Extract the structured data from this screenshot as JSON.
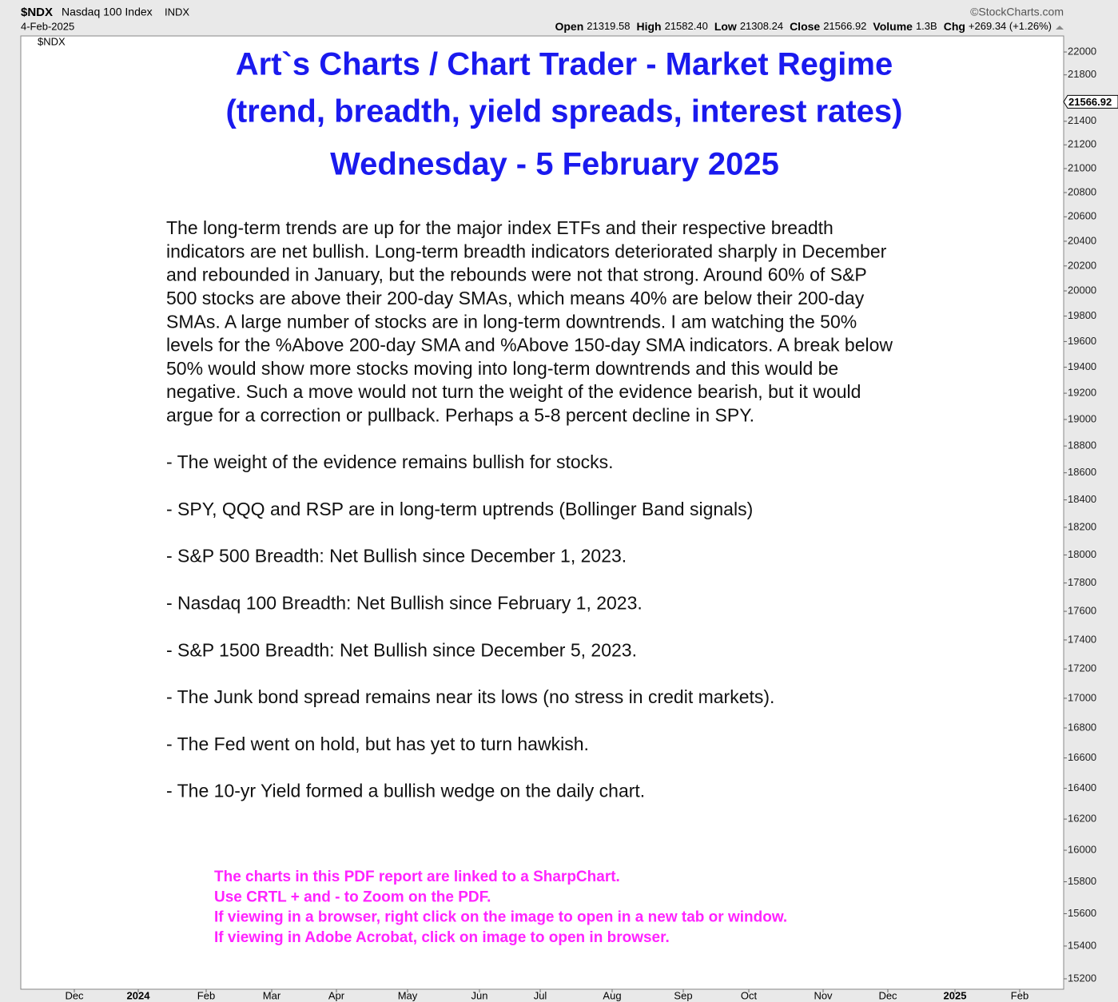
{
  "chart_data": {
    "type": "line",
    "symbol": "$NDX",
    "name": "Nasdaq 100 Index",
    "exchange": "INDX",
    "date": "4-Feb-2025",
    "source": "©StockCharts.com",
    "quote": [
      {
        "label": "Open",
        "value": "21319.58"
      },
      {
        "label": "High",
        "value": "21582.40"
      },
      {
        "label": "Low",
        "value": "21308.24"
      },
      {
        "label": "Close",
        "value": "21566.92"
      },
      {
        "label": "Volume",
        "value": "1.3B"
      },
      {
        "label": "Chg",
        "value": "+269.34 (+1.26%)"
      }
    ],
    "plot_label": "$NDX",
    "log_scale": true,
    "ylim": [
      15137,
      22141
    ],
    "yticks": [
      15200,
      15400,
      15600,
      15800,
      16000,
      16200,
      16400,
      16600,
      16800,
      17000,
      17200,
      17400,
      17600,
      17800,
      18000,
      18200,
      18400,
      18600,
      18800,
      19000,
      19200,
      19400,
      19600,
      19800,
      20000,
      20200,
      20400,
      20600,
      20800,
      21000,
      21200,
      21400,
      21800,
      22000
    ],
    "last_price": 21566.92,
    "categories": [
      "Dec",
      "2024",
      "Feb",
      "Mar",
      "Apr",
      "May",
      "Jun",
      "Jul",
      "Aug",
      "Sep",
      "Oct",
      "Nov",
      "Dec",
      "2025",
      "Feb"
    ],
    "title": [
      "Art`s Charts / Chart Trader - Market Regime",
      "(trend, breadth, yield spreads, interest rates)",
      "Wednesday -  5 February 2025"
    ],
    "paragraph": [
      "The long-term trends are up for the major index ETFs and their respective breadth",
      "indicators are net bullish. Long-term breadth indicators deteriorated sharply in December",
      "and rebounded in January, but the rebounds were not that strong. Around 60% of S&P",
      "500 stocks are above their 200-day SMAs, which means 40% are below their 200-day",
      "SMAs. A large number of stocks are in long-term downtrends. I am watching the 50%",
      "levels for the %Above 200-day SMA and %Above 150-day SMA indicators. A break below",
      "50% would show more stocks moving into long-term downtrends and this would be",
      "negative. Such a move would not turn the weight of the evidence bearish, but it would",
      "argue for a correction or pullback. Perhaps a 5-8 percent decline in SPY."
    ],
    "bullets": [
      "- The weight of the evidence remains bullish for stocks.",
      "- SPY, QQQ and RSP are in long-term uptrends (Bollinger Band signals)",
      "- S&P 500 Breadth: Net Bullish since December 1, 2023.",
      "- Nasdaq 100 Breadth: Net Bullish since February 1, 2023.",
      "- S&P 1500 Breadth: Net Bullish since December 5, 2023.",
      "- The Junk bond spread remains near its lows (no stress in credit markets).",
      "- The Fed went on hold, but has yet to turn hawkish.",
      "- The 10-yr Yield formed a bullish wedge on the daily chart."
    ],
    "notes": [
      "The charts in this PDF report are linked to a SharpChart.",
      "Use CRTL + and - to Zoom on the PDF.",
      "If viewing in a browser, right click on the image to open in a new tab or window.",
      "If viewing in Adobe Acrobat, click on image to open in browser."
    ]
  }
}
